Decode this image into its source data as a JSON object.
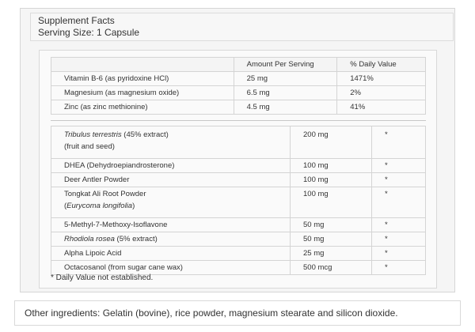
{
  "header": {
    "title": "Supplement Facts",
    "serving": "Serving Size: 1 Capsule"
  },
  "vitamin_table": {
    "columns": [
      "",
      "Amount Per Serving",
      "% Daily Value"
    ],
    "rows": [
      {
        "name": "Vitamin B-6 (as pyridoxine HCl)",
        "amount": "25 mg",
        "dv": "1471%"
      },
      {
        "name": "Magnesium (as magnesium oxide)",
        "amount": "6.5 mg",
        "dv": "2%"
      },
      {
        "name": "Zinc (as zinc methionine)",
        "amount": "4.5 mg",
        "dv": "41%"
      }
    ]
  },
  "proprietary_table": {
    "rows": [
      {
        "name_italic": "Tribulus terrestris",
        "name_rest": " (45% extract)",
        "line2": "(fruit and seed)",
        "amount": "200 mg",
        "dv": "*"
      },
      {
        "name": "DHEA (Dehydroepiandrosterone)",
        "amount": "100 mg",
        "dv": "*"
      },
      {
        "name": "Deer Antler Powder",
        "amount": "100 mg",
        "dv": "*"
      },
      {
        "name": "Tongkat Ali Root Powder",
        "line2_open": "(",
        "line2_italic": "Eurycoma longifolia",
        "line2_close": ")",
        "amount": "100 mg",
        "dv": "*"
      },
      {
        "name": "5-Methyl-7-Methoxy-Isoflavone",
        "amount": "50 mg",
        "dv": "*"
      },
      {
        "name_italic": "Rhodiola rosea",
        "name_rest": " (5% extract)",
        "amount": "50 mg",
        "dv": "*"
      },
      {
        "name": "Alpha Lipoic Acid",
        "amount": "25 mg",
        "dv": "*"
      },
      {
        "name": "Octacosanol (from sugar cane wax)",
        "amount": "500 mcg",
        "dv": "*"
      }
    ]
  },
  "footnote": "* Daily Value not established.",
  "other_ingredients": "Other ingredients: Gelatin (bovine), rice powder, magnesium stearate and silicon dioxide."
}
